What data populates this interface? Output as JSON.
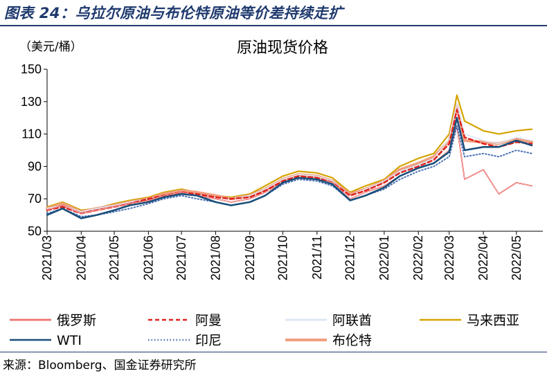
{
  "figure_title": "图表 24：乌拉尔原油与布伦特原油等价差持续走扩",
  "source": "来源：Bloomberg、国金证券研究所",
  "chart_data": {
    "type": "line",
    "title": "原油现货价格",
    "ylabel": "（美元/桶）",
    "xlabel": "",
    "ylim": [
      50,
      150
    ],
    "yticks": [
      50,
      70,
      90,
      110,
      130,
      150
    ],
    "x_tick_labels": [
      "2021/03",
      "2021/04",
      "2021/05",
      "2021/06",
      "2021/07",
      "2021/08",
      "2021/09",
      "2021/10",
      "2021/11",
      "2021/12",
      "2022/01",
      "2022/02",
      "2022/03",
      "2022/04",
      "2022/05"
    ],
    "legend_position": "bottom",
    "grid": false,
    "x": [
      "2021/03/01",
      "2021/03/15",
      "2021/04/01",
      "2021/04/15",
      "2021/05/01",
      "2021/05/15",
      "2021/06/01",
      "2021/06/15",
      "2021/07/01",
      "2021/07/15",
      "2021/08/01",
      "2021/08/15",
      "2021/09/01",
      "2021/09/15",
      "2021/10/01",
      "2021/10/15",
      "2021/11/01",
      "2021/11/15",
      "2021/12/01",
      "2021/12/15",
      "2022/01/01",
      "2022/01/15",
      "2022/02/01",
      "2022/02/15",
      "2022/03/01",
      "2022/03/08",
      "2022/03/15",
      "2022/04/01",
      "2022/04/15",
      "2022/05/01",
      "2022/05/15"
    ],
    "series": [
      {
        "name": "俄罗斯",
        "color": "#e0211c",
        "style": "double",
        "values": [
          63,
          66,
          61,
          63,
          65,
          67,
          69,
          72,
          74,
          72,
          70,
          68,
          70,
          74,
          80,
          83,
          82,
          80,
          70,
          74,
          78,
          84,
          89,
          92,
          100,
          115,
          82,
          88,
          73,
          80,
          78
        ]
      },
      {
        "name": "阿曼",
        "color": "#e0211c",
        "style": "dashed",
        "values": [
          63,
          65,
          61,
          63,
          65,
          67,
          70,
          72,
          74,
          73,
          71,
          70,
          71,
          75,
          81,
          84,
          83,
          80,
          72,
          75,
          80,
          86,
          90,
          94,
          104,
          125,
          108,
          104,
          102,
          105,
          104
        ]
      },
      {
        "name": "阿联酋",
        "color": "#c7d3ec",
        "style": "double",
        "values": [
          64,
          66,
          62,
          64,
          66,
          68,
          70,
          72,
          74,
          73,
          71,
          70,
          72,
          76,
          82,
          85,
          84,
          81,
          72,
          76,
          81,
          87,
          91,
          95,
          107,
          129,
          110,
          106,
          104,
          108,
          106
        ]
      },
      {
        "name": "马来西亚",
        "color": "#d4a400",
        "style": "solid",
        "values": [
          65,
          68,
          63,
          64,
          67,
          69,
          71,
          74,
          76,
          74,
          72,
          71,
          73,
          78,
          84,
          87,
          86,
          83,
          74,
          78,
          82,
          90,
          95,
          98,
          110,
          134,
          118,
          112,
          110,
          112,
          113
        ]
      },
      {
        "name": "WTI",
        "color": "#1a4f7a",
        "style": "solid",
        "values": [
          60,
          64,
          58,
          60,
          63,
          66,
          68,
          71,
          73,
          72,
          68,
          66,
          68,
          72,
          80,
          83,
          82,
          79,
          69,
          72,
          77,
          84,
          89,
          92,
          99,
          120,
          100,
          102,
          102,
          106,
          103
        ]
      },
      {
        "name": "印尼",
        "color": "#4a6fb3",
        "style": "dotted",
        "values": [
          61,
          64,
          59,
          60,
          62,
          64,
          67,
          70,
          72,
          70,
          68,
          66,
          68,
          72,
          79,
          82,
          81,
          78,
          69,
          72,
          76,
          82,
          87,
          90,
          96,
          115,
          96,
          98,
          96,
          100,
          98
        ]
      },
      {
        "name": "布伦特",
        "color": "#f0a080",
        "style": "solid",
        "values": [
          64,
          67,
          62,
          64,
          66,
          68,
          70,
          73,
          75,
          74,
          72,
          70,
          72,
          76,
          82,
          85,
          84,
          81,
          73,
          76,
          81,
          88,
          92,
          96,
          106,
          128,
          106,
          105,
          104,
          107,
          105
        ]
      }
    ]
  }
}
